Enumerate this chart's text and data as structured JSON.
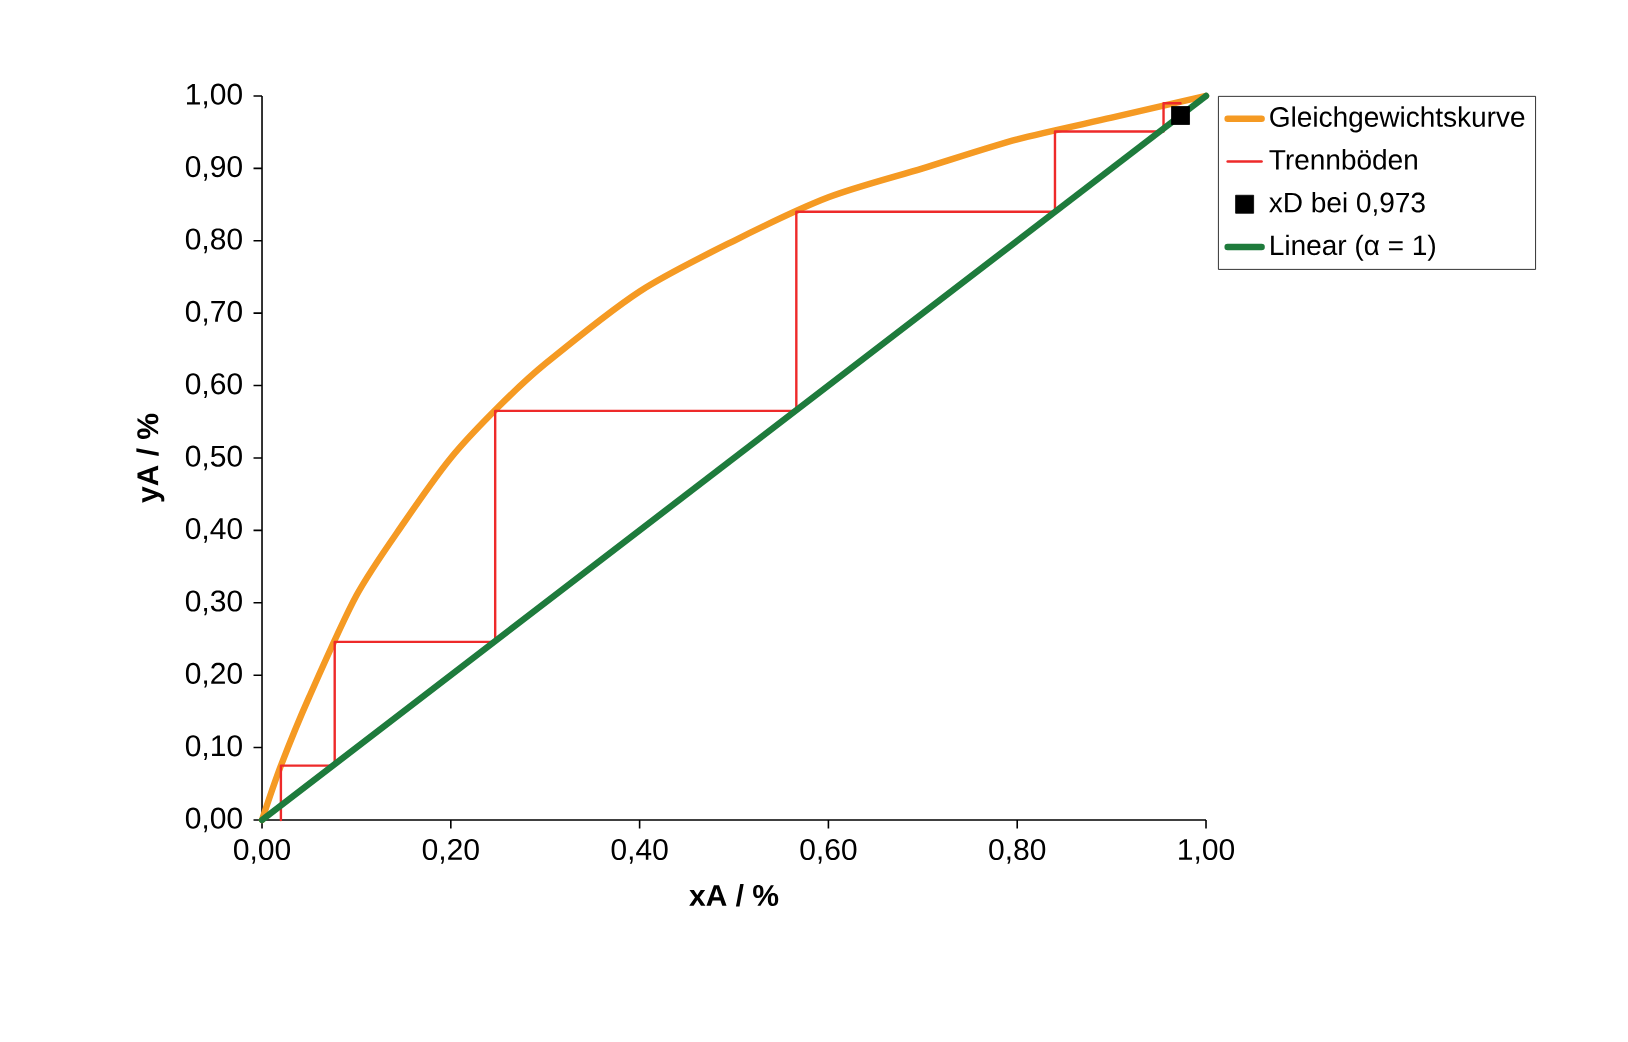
{
  "chart_data": {
    "type": "line",
    "xlabel": "xA / %",
    "ylabel": "yA / %",
    "xlim": [
      0,
      1
    ],
    "ylim": [
      0,
      1
    ],
    "xticks": [
      {
        "value": 0,
        "label": "0,00"
      },
      {
        "value": 0.2,
        "label": "0,20"
      },
      {
        "value": 0.4,
        "label": "0,40"
      },
      {
        "value": 0.6,
        "label": "0,60"
      },
      {
        "value": 0.8,
        "label": "0,80"
      },
      {
        "value": 1,
        "label": "1,00"
      }
    ],
    "yticks": [
      {
        "value": 0,
        "label": "0,00"
      },
      {
        "value": 0.1,
        "label": "0,10"
      },
      {
        "value": 0.2,
        "label": "0,20"
      },
      {
        "value": 0.3,
        "label": "0,30"
      },
      {
        "value": 0.4,
        "label": "0,40"
      },
      {
        "value": 0.5,
        "label": "0,50"
      },
      {
        "value": 0.6,
        "label": "0,60"
      },
      {
        "value": 0.7,
        "label": "0,70"
      },
      {
        "value": 0.8,
        "label": "0,80"
      },
      {
        "value": 0.9,
        "label": "0,90"
      },
      {
        "value": 1,
        "label": "1,00"
      }
    ],
    "grid": false,
    "legend": "right",
    "series": [
      {
        "name": "Gleichgewichtskurve",
        "color": "#f59a23",
        "x": [
          0,
          0.02,
          0.05,
          0.1,
          0.15,
          0.2,
          0.25,
          0.3,
          0.4,
          0.5,
          0.6,
          0.7,
          0.8,
          0.9,
          1.0
        ],
        "values": [
          0,
          0.075,
          0.17,
          0.31,
          0.41,
          0.5,
          0.57,
          0.63,
          0.73,
          0.8,
          0.86,
          0.9,
          0.94,
          0.97,
          1.0
        ]
      },
      {
        "name": "Trennböden",
        "color": "#ee2a2a",
        "x": [
          0.02,
          0.02,
          0.077,
          0.077,
          0.247,
          0.247,
          0.566,
          0.566,
          0.84,
          0.84,
          0.955,
          0.955,
          0.973
        ],
        "values": [
          0,
          0.075,
          0.075,
          0.246,
          0.246,
          0.565,
          0.565,
          0.84,
          0.84,
          0.951,
          0.951,
          0.99,
          0.99
        ]
      },
      {
        "name": "xD bei 0,973",
        "type": "scatter",
        "marker": "square",
        "color": "#000000",
        "x": [
          0.973
        ],
        "values": [
          0.973
        ]
      },
      {
        "name": "Linear (α = 1)",
        "color": "#1e7b3c",
        "x": [
          0,
          1
        ],
        "values": [
          0,
          1
        ]
      }
    ]
  }
}
